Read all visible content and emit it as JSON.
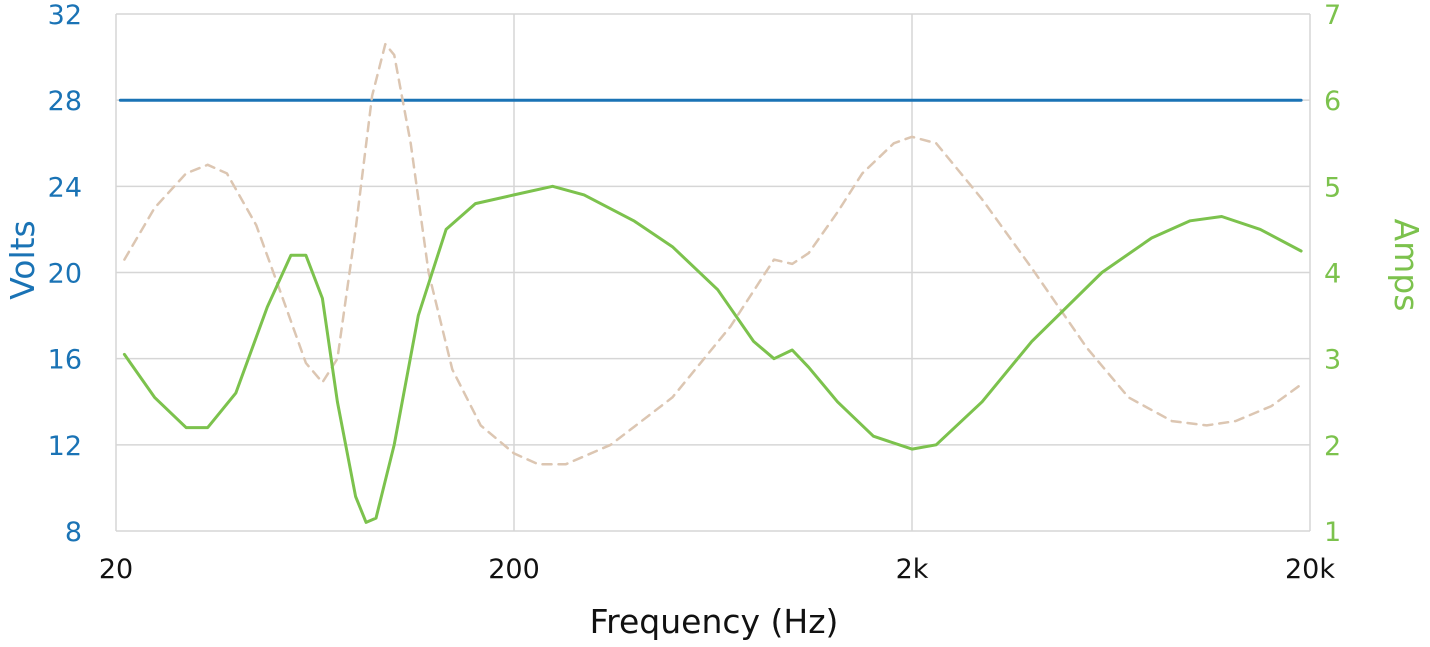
{
  "chart_data": {
    "type": "line",
    "xlabel": "Frequency (Hz)",
    "ylabel_left": "Volts",
    "ylabel_right": "Amps",
    "x_scale": "log",
    "xlim": [
      20,
      20000
    ],
    "x_ticks": [
      20,
      200,
      2000,
      20000
    ],
    "x_tick_labels": [
      "20",
      "200",
      "2k",
      "20k"
    ],
    "ylim_left": [
      8,
      32
    ],
    "y_ticks_left": [
      8,
      12,
      16,
      20,
      24,
      28,
      32
    ],
    "ylim_right": [
      1,
      7
    ],
    "y_ticks_right": [
      1,
      2,
      3,
      4,
      5,
      6,
      7
    ],
    "grid": true,
    "series": [
      {
        "axis": "left",
        "style": "solid",
        "color": "#1a73b5",
        "points": [
          [
            20.5,
            28
          ],
          [
            19000,
            28
          ]
        ]
      },
      {
        "axis": "left",
        "style": "dashed",
        "color": "#dcc6b2",
        "points": [
          [
            21,
            20.6
          ],
          [
            25,
            23.0
          ],
          [
            30,
            24.6
          ],
          [
            34,
            25.0
          ],
          [
            38,
            24.6
          ],
          [
            45,
            22.2
          ],
          [
            52,
            19.0
          ],
          [
            60,
            15.8
          ],
          [
            66,
            14.9
          ],
          [
            72,
            16.0
          ],
          [
            80,
            22.0
          ],
          [
            88,
            28.2
          ],
          [
            95,
            30.6
          ],
          [
            100,
            30.1
          ],
          [
            110,
            26.0
          ],
          [
            122,
            20.0
          ],
          [
            140,
            15.5
          ],
          [
            165,
            12.9
          ],
          [
            200,
            11.6
          ],
          [
            230,
            11.1
          ],
          [
            270,
            11.1
          ],
          [
            350,
            12.0
          ],
          [
            500,
            14.2
          ],
          [
            700,
            17.5
          ],
          [
            900,
            20.6
          ],
          [
            1000,
            20.4
          ],
          [
            1100,
            20.9
          ],
          [
            1300,
            22.8
          ],
          [
            1500,
            24.6
          ],
          [
            1800,
            26.0
          ],
          [
            2000,
            26.3
          ],
          [
            2300,
            26.0
          ],
          [
            3000,
            23.4
          ],
          [
            4000,
            20.2
          ],
          [
            5500,
            16.5
          ],
          [
            7000,
            14.2
          ],
          [
            9000,
            13.1
          ],
          [
            11000,
            12.9
          ],
          [
            13000,
            13.1
          ],
          [
            16000,
            13.8
          ],
          [
            19000,
            14.8
          ]
        ]
      },
      {
        "axis": "right",
        "style": "solid",
        "color": "#7cc24d",
        "points": [
          [
            21,
            3.05
          ],
          [
            25,
            2.55
          ],
          [
            30,
            2.2
          ],
          [
            34,
            2.2
          ],
          [
            40,
            2.6
          ],
          [
            48,
            3.6
          ],
          [
            55,
            4.2
          ],
          [
            60,
            4.2
          ],
          [
            66,
            3.7
          ],
          [
            72,
            2.5
          ],
          [
            80,
            1.4
          ],
          [
            85,
            1.1
          ],
          [
            90,
            1.15
          ],
          [
            100,
            2.0
          ],
          [
            115,
            3.5
          ],
          [
            135,
            4.5
          ],
          [
            160,
            4.8
          ],
          [
            200,
            4.9
          ],
          [
            250,
            5.0
          ],
          [
            300,
            4.9
          ],
          [
            400,
            4.6
          ],
          [
            500,
            4.3
          ],
          [
            650,
            3.8
          ],
          [
            800,
            3.2
          ],
          [
            900,
            3.0
          ],
          [
            1000,
            3.1
          ],
          [
            1100,
            2.9
          ],
          [
            1300,
            2.5
          ],
          [
            1600,
            2.1
          ],
          [
            2000,
            1.95
          ],
          [
            2300,
            2.0
          ],
          [
            3000,
            2.5
          ],
          [
            4000,
            3.2
          ],
          [
            6000,
            4.0
          ],
          [
            8000,
            4.4
          ],
          [
            10000,
            4.6
          ],
          [
            12000,
            4.65
          ],
          [
            15000,
            4.5
          ],
          [
            19000,
            4.25
          ]
        ]
      }
    ]
  }
}
